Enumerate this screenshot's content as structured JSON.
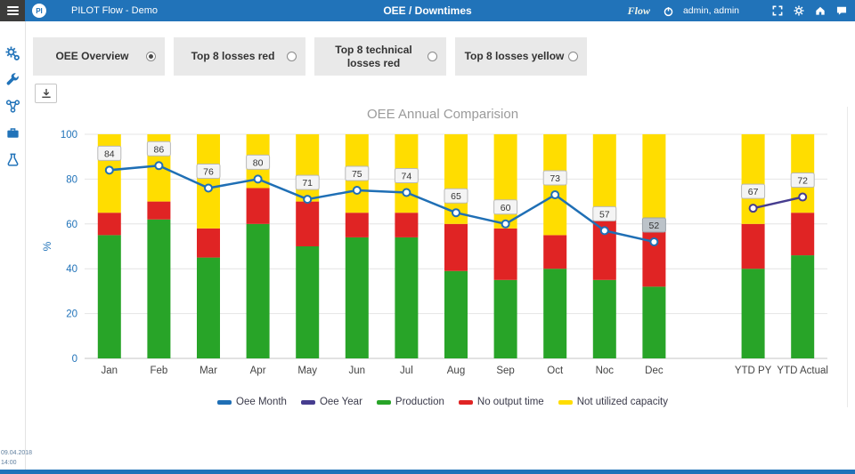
{
  "header": {
    "app_title": "PILOT Flow - Demo",
    "page_title": "OEE / Downtimes",
    "brand_script": "Flow",
    "user_label": "admin, admin",
    "icons": [
      "fullscreen-icon",
      "gear-icon",
      "home-icon",
      "chat-icon"
    ],
    "logo_text": "PI"
  },
  "sidebar": {
    "icons": [
      "settings-gears-icon",
      "wrench-icon",
      "network-icon",
      "briefcase-icon",
      "flask-icon"
    ],
    "date": "09.04.2018",
    "time": "14:00"
  },
  "tabs": [
    {
      "label": "OEE Overview",
      "selected": true
    },
    {
      "label": "Top 8 losses red",
      "selected": false
    },
    {
      "label": "Top 8 technical losses red",
      "selected": false
    },
    {
      "label": "Top 8 losses yellow",
      "selected": false
    }
  ],
  "toolbar": {
    "export_icon": "download-icon"
  },
  "chart_data": {
    "type": "bar",
    "subtype": "stacked-bar-with-lines",
    "title": "OEE Annual Comparision",
    "ylabel": "%",
    "ylim": [
      0,
      100
    ],
    "yticks": [
      0,
      20,
      40,
      60,
      80,
      100
    ],
    "axis_color": "#2173b9",
    "grid": true,
    "legend_position": "bottom",
    "categories": [
      "Jan",
      "Feb",
      "Mar",
      "Apr",
      "May",
      "Jun",
      "Jul",
      "Aug",
      "Sep",
      "Oct",
      "Noc",
      "Dec",
      "YTD PY",
      "YTD Actual"
    ],
    "bar_series": [
      {
        "name": "Production",
        "color": "#28a428",
        "values": [
          55,
          62,
          45,
          60,
          50,
          54,
          54,
          39,
          35,
          40,
          35,
          32,
          40,
          46
        ]
      },
      {
        "name": "No output time",
        "color": "#e02424",
        "values": [
          10,
          8,
          13,
          16,
          20,
          11,
          11,
          21,
          23,
          15,
          27,
          26,
          20,
          19
        ]
      },
      {
        "name": "Not utilized capacity",
        "color": "#ffdd00",
        "values": [
          35,
          30,
          42,
          24,
          30,
          35,
          35,
          40,
          42,
          45,
          38,
          42,
          40,
          35
        ]
      }
    ],
    "line_series": [
      {
        "name": "Oee Month",
        "color": "#1f6fb5",
        "category_indexes": [
          0,
          1,
          2,
          3,
          4,
          5,
          6,
          7,
          8,
          9,
          10,
          11
        ],
        "values": [
          84,
          86,
          76,
          80,
          71,
          75,
          74,
          65,
          60,
          73,
          57,
          52
        ]
      },
      {
        "name": "Oee Year",
        "color": "#463d8f",
        "category_indexes": [
          12,
          13
        ],
        "values": [
          67,
          72
        ]
      }
    ],
    "highlighted_label": {
      "series": "Oee Month",
      "category_index": 11,
      "value": 52
    }
  }
}
